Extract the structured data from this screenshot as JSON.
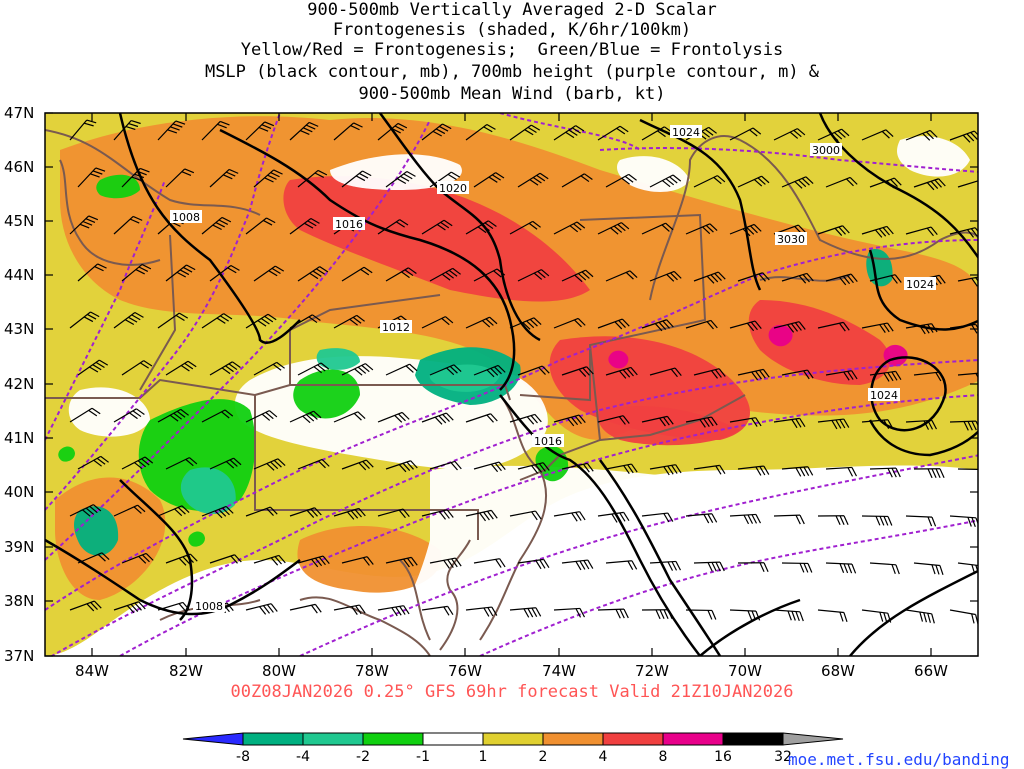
{
  "title_lines": [
    "900-500mb Vertically Averaged 2-D Scalar",
    "Frontogenesis (shaded, K/6hr/100km)",
    "Yellow/Red = Frontogenesis;  Green/Blue = Frontolysis",
    "MSLP (black contour, mb), 700mb height (purple contour, m) &",
    "900-500mb Mean Wind (barb, kt)"
  ],
  "footer": "00Z08JAN2026 0.25° GFS 69hr forecast Valid 21Z10JAN2026",
  "credit": "moe.met.fsu.edu/banding",
  "axes": {
    "lat_labels": [
      "47N",
      "46N",
      "45N",
      "44N",
      "43N",
      "42N",
      "41N",
      "40N",
      "39N",
      "38N",
      "37N"
    ],
    "lon_labels": [
      "84W",
      "82W",
      "80W",
      "78W",
      "76W",
      "74W",
      "72W",
      "70W",
      "68W",
      "66W"
    ]
  },
  "mslp_labels": [
    "1024",
    "1020",
    "1016",
    "1008",
    "1012",
    "1016",
    "1024",
    "1024",
    "1008"
  ],
  "height_labels": [
    "3000",
    "3030"
  ],
  "colorbar": {
    "colors": [
      "#2a2aff",
      "#00b080",
      "#20c890",
      "#10d010",
      "#ffffff",
      "#e0d030",
      "#f09030",
      "#f04040",
      "#e8008a",
      "#000000",
      "#a0a0a0"
    ],
    "tick_labels": [
      "-8",
      "-4",
      "-2",
      "-1",
      "1",
      "2",
      "4",
      "8",
      "16",
      "32"
    ]
  }
}
